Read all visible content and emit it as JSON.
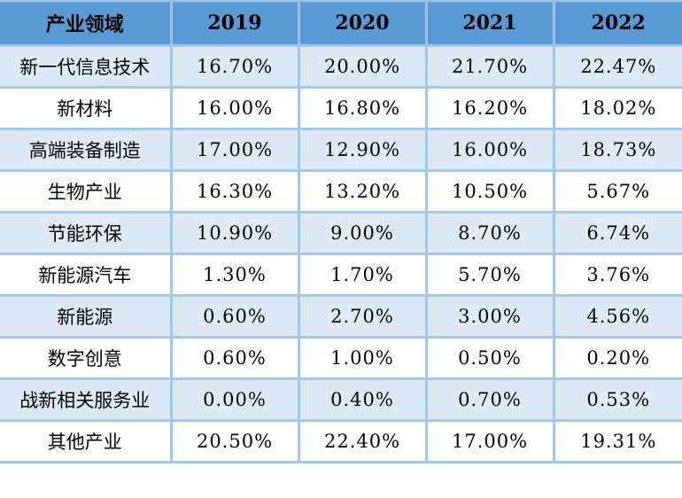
{
  "table": {
    "columns": [
      "产业领域",
      "2019",
      "2020",
      "2021",
      "2022"
    ],
    "rows": [
      {
        "label": "新一代信息技术",
        "values": [
          "16.70%",
          "20.00%",
          "21.70%",
          "22.47%"
        ]
      },
      {
        "label": "新材料",
        "values": [
          "16.00%",
          "16.80%",
          "16.20%",
          "18.02%"
        ]
      },
      {
        "label": "高端装备制造",
        "values": [
          "17.00%",
          "12.90%",
          "16.00%",
          "18.73%"
        ]
      },
      {
        "label": "生物产业",
        "values": [
          "16.30%",
          "13.20%",
          "10.50%",
          "5.67%"
        ]
      },
      {
        "label": "节能环保",
        "values": [
          "10.90%",
          "9.00%",
          "8.70%",
          "6.74%"
        ]
      },
      {
        "label": "新能源汽车",
        "values": [
          "1.30%",
          "1.70%",
          "5.70%",
          "3.76%"
        ]
      },
      {
        "label": "新能源",
        "values": [
          "0.60%",
          "2.70%",
          "3.00%",
          "4.56%"
        ]
      },
      {
        "label": "数字创意",
        "values": [
          "0.60%",
          "1.00%",
          "0.50%",
          "0.20%"
        ]
      },
      {
        "label": "战新相关服务业",
        "values": [
          "0.00%",
          "0.40%",
          "0.70%",
          "0.53%"
        ]
      },
      {
        "label": "其他产业",
        "values": [
          "20.50%",
          "22.40%",
          "17.00%",
          "19.31%"
        ]
      }
    ],
    "colors": {
      "header_bg": "#5B9BD5",
      "row_alt_bg": "#DEEAF6",
      "row_bg": "#FFFFFF",
      "gridline": "#A3C7E8",
      "text": "#000000"
    }
  },
  "chart_data": {
    "type": "table",
    "title": "",
    "row_header": "产业领域",
    "categories": [
      "2019",
      "2020",
      "2021",
      "2022"
    ],
    "unit": "%",
    "series": [
      {
        "name": "新一代信息技术",
        "values": [
          16.7,
          20.0,
          21.7,
          22.47
        ]
      },
      {
        "name": "新材料",
        "values": [
          16.0,
          16.8,
          16.2,
          18.02
        ]
      },
      {
        "name": "高端装备制造",
        "values": [
          17.0,
          12.9,
          16.0,
          18.73
        ]
      },
      {
        "name": "生物产业",
        "values": [
          16.3,
          13.2,
          10.5,
          5.67
        ]
      },
      {
        "name": "节能环保",
        "values": [
          10.9,
          9.0,
          8.7,
          6.74
        ]
      },
      {
        "name": "新能源汽车",
        "values": [
          1.3,
          1.7,
          5.7,
          3.76
        ]
      },
      {
        "name": "新能源",
        "values": [
          0.6,
          2.7,
          3.0,
          4.56
        ]
      },
      {
        "name": "数字创意",
        "values": [
          0.6,
          1.0,
          0.5,
          0.2
        ]
      },
      {
        "name": "战新相关服务业",
        "values": [
          0.0,
          0.4,
          0.7,
          0.53
        ]
      },
      {
        "name": "其他产业",
        "values": [
          20.5,
          22.4,
          17.0,
          19.31
        ]
      }
    ]
  }
}
